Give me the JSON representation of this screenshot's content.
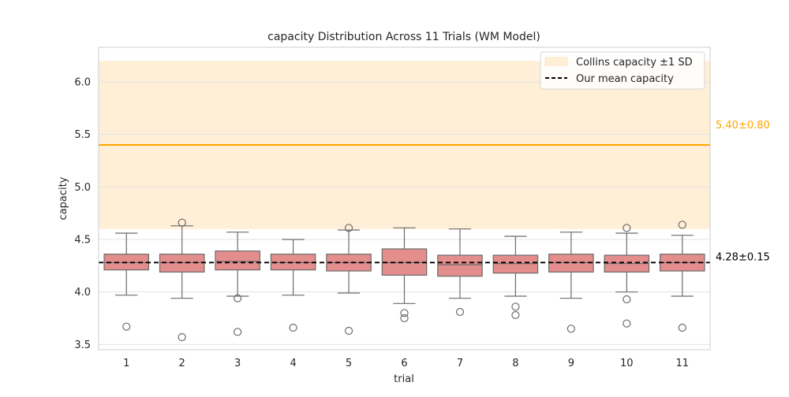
{
  "chart_data": {
    "type": "box",
    "title": "capacity Distribution Across 11 Trials (WM Model)",
    "xlabel": "trial",
    "ylabel": "capacity",
    "categories": [
      "1",
      "2",
      "3",
      "4",
      "5",
      "6",
      "7",
      "8",
      "9",
      "10",
      "11"
    ],
    "ylim": [
      3.45,
      6.33
    ],
    "yticks": [
      3.5,
      4.0,
      4.5,
      5.0,
      5.5,
      6.0
    ],
    "ytick_labels": [
      "3.5",
      "4.0",
      "4.5",
      "5.0",
      "5.5",
      "6.0"
    ],
    "grid": true,
    "legend_position": "top-right",
    "boxes": [
      {
        "trial": "1",
        "whislo": 3.97,
        "q1": 4.21,
        "med": 4.28,
        "q3": 4.36,
        "whishi": 4.56,
        "fliers": [
          3.67
        ]
      },
      {
        "trial": "2",
        "whislo": 3.94,
        "q1": 4.19,
        "med": 4.28,
        "q3": 4.36,
        "whishi": 4.63,
        "fliers": [
          4.66,
          3.57
        ]
      },
      {
        "trial": "3",
        "whislo": 3.96,
        "q1": 4.21,
        "med": 4.29,
        "q3": 4.39,
        "whishi": 4.57,
        "fliers": [
          3.94,
          3.62
        ]
      },
      {
        "trial": "4",
        "whislo": 3.97,
        "q1": 4.21,
        "med": 4.28,
        "q3": 4.36,
        "whishi": 4.5,
        "fliers": [
          3.66
        ]
      },
      {
        "trial": "5",
        "whislo": 3.99,
        "q1": 4.2,
        "med": 4.28,
        "q3": 4.36,
        "whishi": 4.59,
        "fliers": [
          4.61,
          3.63
        ]
      },
      {
        "trial": "6",
        "whislo": 3.89,
        "q1": 4.16,
        "med": 4.28,
        "q3": 4.41,
        "whishi": 4.61,
        "fliers": [
          3.8,
          3.75
        ]
      },
      {
        "trial": "7",
        "whislo": 3.94,
        "q1": 4.15,
        "med": 4.26,
        "q3": 4.35,
        "whishi": 4.6,
        "fliers": [
          3.81
        ]
      },
      {
        "trial": "8",
        "whislo": 3.96,
        "q1": 4.18,
        "med": 4.27,
        "q3": 4.35,
        "whishi": 4.53,
        "fliers": [
          3.86,
          3.78
        ]
      },
      {
        "trial": "9",
        "whislo": 3.94,
        "q1": 4.19,
        "med": 4.28,
        "q3": 4.36,
        "whishi": 4.57,
        "fliers": [
          3.65
        ]
      },
      {
        "trial": "10",
        "whislo": 4.0,
        "q1": 4.19,
        "med": 4.27,
        "q3": 4.35,
        "whishi": 4.56,
        "fliers": [
          4.61,
          3.93,
          3.7
        ]
      },
      {
        "trial": "11",
        "whislo": 3.96,
        "q1": 4.2,
        "med": 4.28,
        "q3": 4.36,
        "whishi": 4.54,
        "fliers": [
          4.64,
          3.66
        ]
      }
    ],
    "reference_band": {
      "label": "Collins capacity ±1 SD",
      "mean": 5.4,
      "low": 4.6,
      "high": 6.2,
      "annotation": "5.40±0.80"
    },
    "our_mean": {
      "label": "Our mean capacity",
      "value": 4.28,
      "annotation": "4.28±0.15"
    },
    "colors": {
      "box_fill": "#e48d8d",
      "box_edge": "#6b6b6b",
      "band_fill": "#ffefd6",
      "collins_line": "#ffa500",
      "mean_line": "#000000",
      "grid": "#e3e3e3",
      "axis_text": "#262626"
    }
  }
}
